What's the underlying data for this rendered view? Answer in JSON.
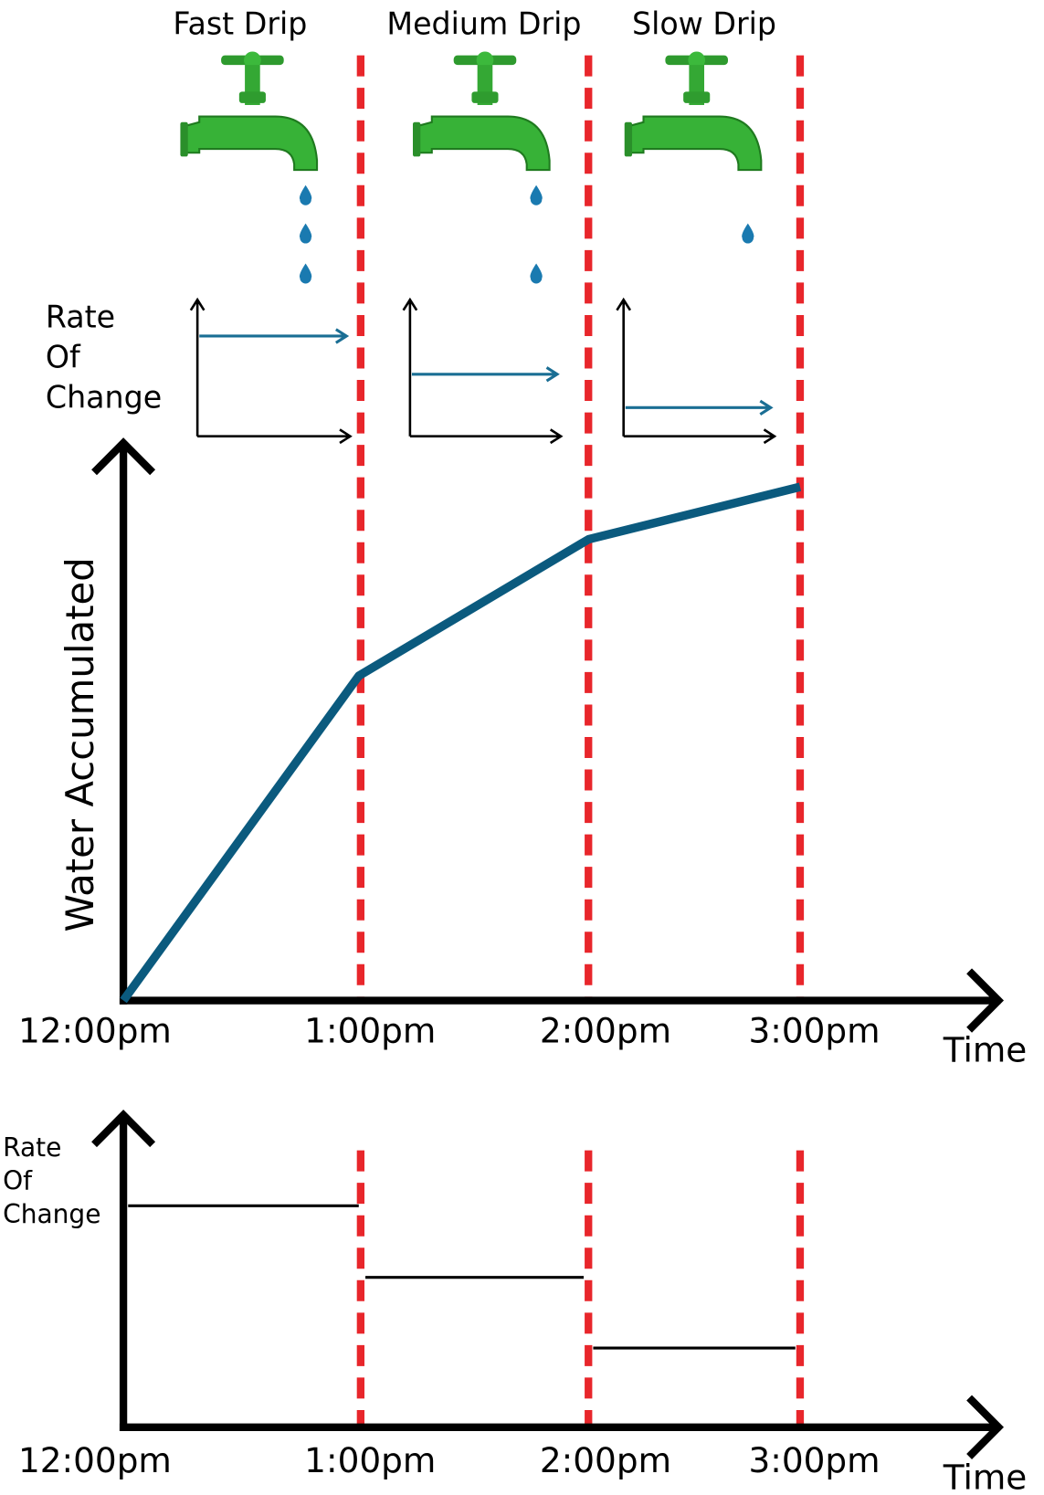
{
  "header_labels": [
    "Fast Drip",
    "Medium Drip",
    "Slow Drip"
  ],
  "rate_label_top": [
    "Rate",
    "Of",
    "Change"
  ],
  "main_chart": {
    "y_label": "Water Accumulated",
    "x_labels": [
      "12:00pm",
      "1:00pm",
      "2:00pm",
      "3:00pm"
    ],
    "x_label": "Time"
  },
  "rate_chart": {
    "y_label": [
      "Rate",
      "Of",
      "Change"
    ],
    "x_labels": [
      "12:00pm",
      "1:00pm",
      "2:00pm",
      "3:00pm"
    ],
    "x_label": "Time"
  }
}
